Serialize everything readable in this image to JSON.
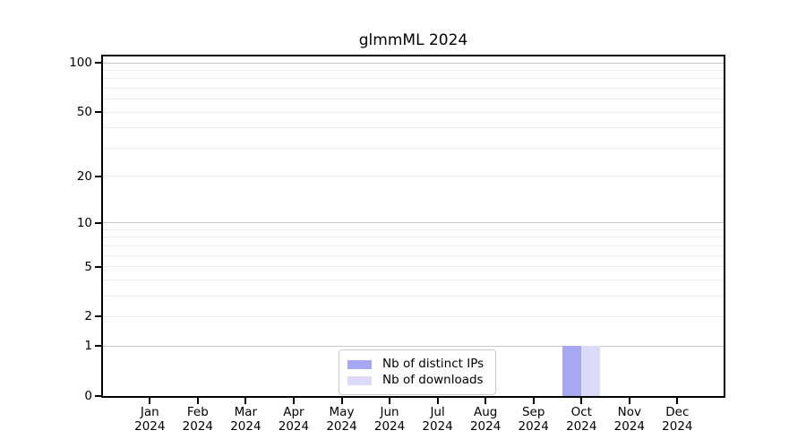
{
  "figure": {
    "title": "glmmML 2024"
  },
  "chart_data": {
    "type": "bar",
    "title": "glmmML 2024",
    "x": {
      "months": [
        "Jan",
        "Feb",
        "Mar",
        "Apr",
        "May",
        "Jun",
        "Jul",
        "Aug",
        "Sep",
        "Oct",
        "Nov",
        "Dec"
      ],
      "year": "2024"
    },
    "series": [
      {
        "name": "Nb of distinct IPs",
        "color": "#a8a8f2",
        "values": [
          0,
          0,
          0,
          0,
          0,
          0,
          0,
          0,
          0,
          1,
          0,
          0
        ]
      },
      {
        "name": "Nb of downloads",
        "color": "#dbdbf8",
        "values": [
          0,
          0,
          0,
          0,
          0,
          0,
          0,
          0,
          0,
          1,
          0,
          0
        ]
      }
    ],
    "y_axis": {
      "scale": "log10(1+y)",
      "tick_values": [
        0,
        1,
        2,
        5,
        10,
        20,
        50,
        100
      ],
      "major_gridlines": [
        1,
        10,
        100
      ],
      "minor_gridlines": [
        2,
        3,
        4,
        5,
        6,
        7,
        8,
        9,
        20,
        30,
        40,
        50,
        60,
        70,
        80,
        90
      ]
    },
    "legend_position": "lower center",
    "grid": true,
    "colors": {
      "spine": "#000000",
      "major_grid": "#c8c8c8",
      "minor_grid": "#ececec",
      "background": "#ffffff"
    }
  }
}
